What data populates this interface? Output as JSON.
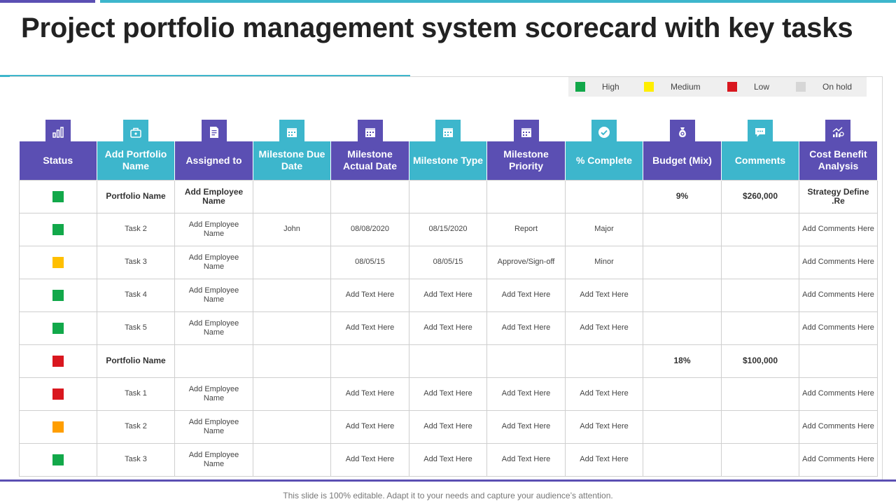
{
  "title": "Project portfolio management system scorecard with key tasks",
  "colors": {
    "purple": "#5b4fb3",
    "teal": "#3db6cc",
    "high": "#12a84a",
    "medium": "#ffee00",
    "low": "#d9171f",
    "on_hold": "#d6d6d6",
    "status_amber": "#ffbf00",
    "status_orange": "#ff9e00"
  },
  "legend": [
    {
      "label": "High",
      "color": "#12a84a"
    },
    {
      "label": "Medium",
      "color": "#ffee00"
    },
    {
      "label": "Low",
      "color": "#d9171f"
    },
    {
      "label": "On hold",
      "color": "#d6d6d6"
    }
  ],
  "columns": [
    {
      "label": "Status",
      "icon": "bar-chart-icon"
    },
    {
      "label": "Add Portfolio Name",
      "icon": "briefcase-icon"
    },
    {
      "label": "Assigned to",
      "icon": "document-icon"
    },
    {
      "label": "Milestone Due Date",
      "icon": "calendar-icon"
    },
    {
      "label": "Milestone Actual Date",
      "icon": "calendar-icon"
    },
    {
      "label": "Milestone Type",
      "icon": "calendar-icon"
    },
    {
      "label": "Milestone Priority",
      "icon": "calendar-icon"
    },
    {
      "label": "% Complete",
      "icon": "check-circle-icon"
    },
    {
      "label": "Budget (Mix)",
      "icon": "money-bag-icon"
    },
    {
      "label": "Comments",
      "icon": "chat-bubble-icon"
    },
    {
      "label": "Cost Benefit Analysis",
      "icon": "analytics-icon"
    }
  ],
  "rows": [
    {
      "status": "#12a84a",
      "name": "Portfolio Name",
      "assigned": "Add Employee Name",
      "due": "",
      "actual": "",
      "type": "",
      "priority": "",
      "complete": "",
      "budget": "9%",
      "comments": "$260,000",
      "cba": "Strategy Define .Re"
    },
    {
      "status": "#12a84a",
      "name": "Task 2",
      "assigned": "Add Employee Name",
      "due": "John",
      "actual": "08/08/2020",
      "type": "08/15/2020",
      "priority": "Report",
      "complete": "Major",
      "budget": "",
      "comments": "",
      "cba": "Add Comments Here"
    },
    {
      "status": "#ffbf00",
      "name": "Task 3",
      "assigned": "Add Employee Name",
      "due": "",
      "actual": "08/05/15",
      "type": "08/05/15",
      "priority": "Approve/Sign-off",
      "complete": "Minor",
      "budget": "",
      "comments": "",
      "cba": "Add Comments Here"
    },
    {
      "status": "#12a84a",
      "name": "Task 4",
      "assigned": "Add Employee Name",
      "due": "",
      "actual": "Add Text Here",
      "type": "Add Text Here",
      "priority": "Add Text Here",
      "complete": "Add Text Here",
      "budget": "",
      "comments": "",
      "cba": "Add Comments Here"
    },
    {
      "status": "#12a84a",
      "name": "Task 5",
      "assigned": "Add Employee Name",
      "due": "",
      "actual": "Add Text Here",
      "type": "Add Text Here",
      "priority": "Add Text Here",
      "complete": "Add Text Here",
      "budget": "",
      "comments": "",
      "cba": "Add Comments Here"
    },
    {
      "status": "#d9171f",
      "name": "Portfolio Name",
      "assigned": "",
      "due": "",
      "actual": "",
      "type": "",
      "priority": "",
      "complete": "",
      "budget": "18%",
      "comments": "$100,000",
      "cba": ""
    },
    {
      "status": "#d9171f",
      "name": "Task 1",
      "assigned": "Add Employee Name",
      "due": "",
      "actual": "Add Text Here",
      "type": "Add Text Here",
      "priority": "Add Text Here",
      "complete": "Add Text Here",
      "budget": "",
      "comments": "",
      "cba": "Add Comments Here"
    },
    {
      "status": "#ff9e00",
      "name": "Task 2",
      "assigned": "Add Employee Name",
      "due": "",
      "actual": "Add Text Here",
      "type": "Add Text Here",
      "priority": "Add Text Here",
      "complete": "Add Text Here",
      "budget": "",
      "comments": "",
      "cba": "Add Comments Here"
    },
    {
      "status": "#12a84a",
      "name": "Task 3",
      "assigned": "Add Employee Name",
      "due": "",
      "actual": "Add Text Here",
      "type": "Add Text Here",
      "priority": "Add Text Here",
      "complete": "Add Text Here",
      "budget": "",
      "comments": "",
      "cba": "Add Comments Here"
    }
  ],
  "footer": "This slide is 100% editable. Adapt it to your needs and capture your audience’s attention."
}
